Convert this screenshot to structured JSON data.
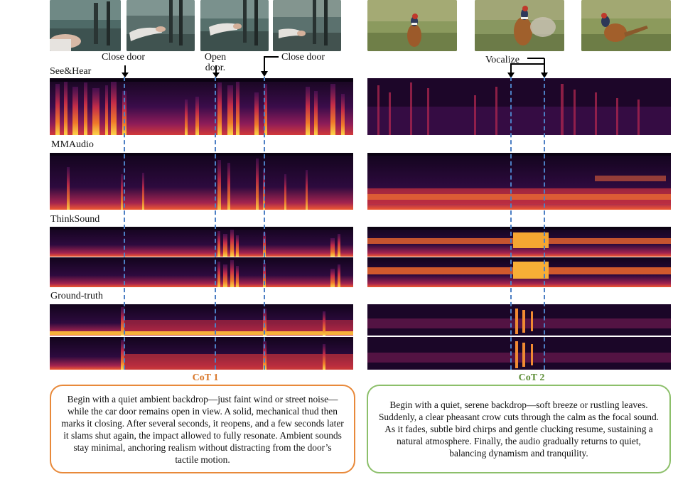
{
  "colors": {
    "cot1_accent": "#e8893a",
    "cot2_accent": "#8cbf6a",
    "dashed_marker": "#4d7fc4",
    "cot1_title": "#d9772a",
    "cot2_title": "#5f8f3a"
  },
  "left_panel": {
    "video_frames": [
      "car-door-frame-1",
      "car-door-frame-2",
      "car-door-frame-3",
      "car-door-frame-4"
    ],
    "events": {
      "close_door_1": "Close door",
      "open_door": "Open\ndoor.",
      "close_door_2": "Close door"
    },
    "cot_title": "CoT 1",
    "cot_text": "Begin with a quiet ambient backdrop—just faint wind or street noise—while the car door remains open in view. A solid, mechanical thud then marks it closing. After several seconds, it reopens, and a few seconds later it slams shut again, the impact allowed to fully resonate. Ambient sounds stay minimal, anchoring realism without distracting from the door’s tactile motion."
  },
  "right_panel": {
    "video_frames": [
      "pheasant-frame-1",
      "pheasant-frame-2",
      "pheasant-frame-3"
    ],
    "events": {
      "vocalize": "Vocalize"
    },
    "cot_title": "CoT 2",
    "cot_text": "Begin with a quiet, serene backdrop—soft breeze or rustling leaves. Suddenly, a clear pheasant crow cuts through the calm as the focal sound. As it fades, subtle bird chirps and gentle clucking resume, sustaining a natural atmosphere. Finally, the audio gradually returns to quiet, balancing dynamism and tranquility."
  },
  "rows": {
    "see_hear": "See&Hear",
    "mmaudio": "MMAudio",
    "thinksound": "ThinkSound",
    "ground_truth": "Ground-truth"
  }
}
